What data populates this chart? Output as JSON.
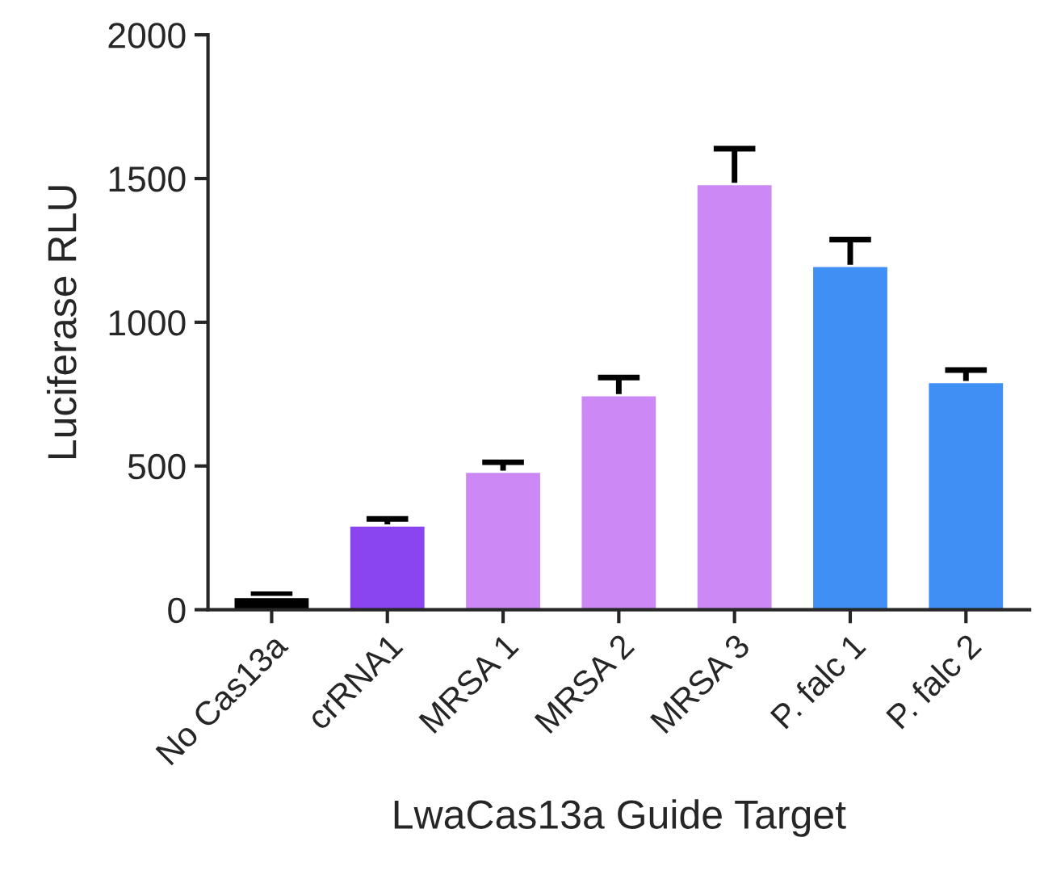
{
  "chart_data": {
    "type": "bar",
    "xlabel": "LwaCas13a Guide Target",
    "ylabel": "Luciferase RLU",
    "categories": [
      "No Cas13a",
      "crRNA1",
      "MRSA 1",
      "MRSA 2",
      "MRSA 3",
      "P. falc 1",
      "P. falc 2"
    ],
    "values": [
      44,
      293,
      480,
      746,
      1481,
      1196,
      792
    ],
    "errors": [
      [
        44,
        54
      ],
      [
        293,
        316
      ],
      [
        480,
        513
      ],
      [
        746,
        808
      ],
      [
        1481,
        1604
      ],
      [
        1196,
        1288
      ],
      [
        792,
        834
      ]
    ],
    "colors": [
      "#000000",
      "#8a45f0",
      "#cc88f5",
      "#cc88f5",
      "#cc88f5",
      "#3f8ff5",
      "#3f8ff5"
    ],
    "ylim": [
      0,
      2000
    ],
    "yticks": [
      0,
      500,
      1000,
      1500,
      2000
    ],
    "grid": false
  }
}
